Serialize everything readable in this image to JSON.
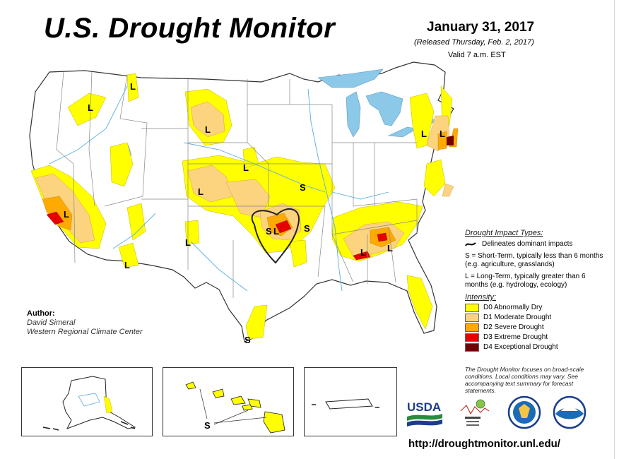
{
  "header": {
    "title": "U.S. Drought Monitor",
    "date": "January 31, 2017",
    "released": "(Released Thursday, Feb. 2, 2017)",
    "valid": "Valid 7 a.m. EST"
  },
  "author": {
    "heading": "Author:",
    "name": "David Simeral",
    "org": "Western Regional Climate Center"
  },
  "legend": {
    "impact_title": "Drought Impact Types:",
    "impact_rows": [
      {
        "text": "Delineates dominant impacts"
      },
      {
        "text": "S = Short-Term, typically less than 6 months (e.g. agriculture, grasslands)"
      },
      {
        "text": "L = Long-Term, typically greater than 6 months (e.g. hydrology, ecology)"
      }
    ],
    "intensity_title": "Intensity:",
    "intensity": [
      {
        "label": "D0 Abnormally Dry",
        "color": "#ffff00"
      },
      {
        "label": "D1 Moderate Drought",
        "color": "#fcd37f"
      },
      {
        "label": "D2 Severe Drought",
        "color": "#ffaa00"
      },
      {
        "label": "D3 Extreme Drought",
        "color": "#e60000"
      },
      {
        "label": "D4 Exceptional Drought",
        "color": "#730000"
      }
    ]
  },
  "note": "The Drought Monitor focuses on broad-scale conditions. Local conditions may vary. See accompanying text summary for forecast statements.",
  "map_labels": {
    "L": "L",
    "S": "S"
  },
  "logos": {
    "usda": "USDA"
  },
  "colors": {
    "water": "#8cc8e8",
    "river": "#5aaee0",
    "state_line": "#888888",
    "outline": "#333333"
  },
  "footer": {
    "url": "http://droughtmonitor.unl.edu/"
  }
}
